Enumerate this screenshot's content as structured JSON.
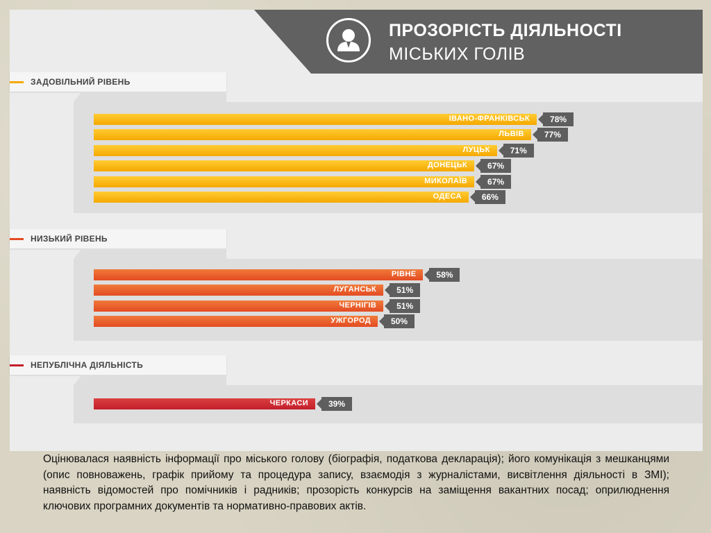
{
  "header": {
    "title_line1": "ПРОЗОРІСТЬ ДІЯЛЬНОСТІ",
    "title_line2": "МІСЬКИХ ГОЛІВ",
    "icon": "person-icon"
  },
  "colors": {
    "satisfactory": "#f5a800",
    "satisfactory_light": "#ffcc33",
    "low": "#e34b22",
    "low_light": "#f07a3a",
    "nonpublic": "#c41e2b",
    "nonpublic_light": "#d94040",
    "badge": "#5e5e5e"
  },
  "chart_data": {
    "type": "bar",
    "orientation": "horizontal",
    "unit": "%",
    "value_max": 100,
    "groups": [
      {
        "name": "ЗАДОВІЛЬНИЙ РІВЕНЬ",
        "color_key": "satisfactory",
        "items": [
          {
            "city": "ІВАНО-ФРАНКІВСЬК",
            "value": 78,
            "label": "78%"
          },
          {
            "city": "ЛЬВІВ",
            "value": 77,
            "label": "77%"
          },
          {
            "city": "ЛУЦЬК",
            "value": 71,
            "label": "71%"
          },
          {
            "city": "ДОНЕЦЬК",
            "value": 67,
            "label": "67%"
          },
          {
            "city": "МИКОЛАЇВ",
            "value": 67,
            "label": "67%"
          },
          {
            "city": "ОДЕСА",
            "value": 66,
            "label": "66%"
          }
        ]
      },
      {
        "name": "НИЗЬКИЙ РІВЕНЬ",
        "color_key": "low",
        "items": [
          {
            "city": "РІВНЕ",
            "value": 58,
            "label": "58%"
          },
          {
            "city": "ЛУГАНСЬК",
            "value": 51,
            "label": "51%"
          },
          {
            "city": "ЧЕРНІГІВ",
            "value": 51,
            "label": "51%"
          },
          {
            "city": "УЖГОРОД",
            "value": 50,
            "label": "50%"
          }
        ]
      },
      {
        "name": "НЕПУБЛІЧНА ДІЯЛЬНІСТЬ",
        "color_key": "nonpublic",
        "items": [
          {
            "city": "ЧЕРКАСИ",
            "value": 39,
            "label": "39%"
          }
        ]
      }
    ]
  },
  "caption": "Оцінювалася наявність інформації про міського голову (біографія, податкова декларація); його комунікація з мешканцями (опис повноважень, графік прийому та процедура запису, взаємодія з журналістами, висвітлення діяльності в ЗМІ); наявність відомостей про помічників і радників; прозорість конкурсів на заміщення вакантних посад; оприлюднення ключових програмних документів та нормативно-правових актів."
}
